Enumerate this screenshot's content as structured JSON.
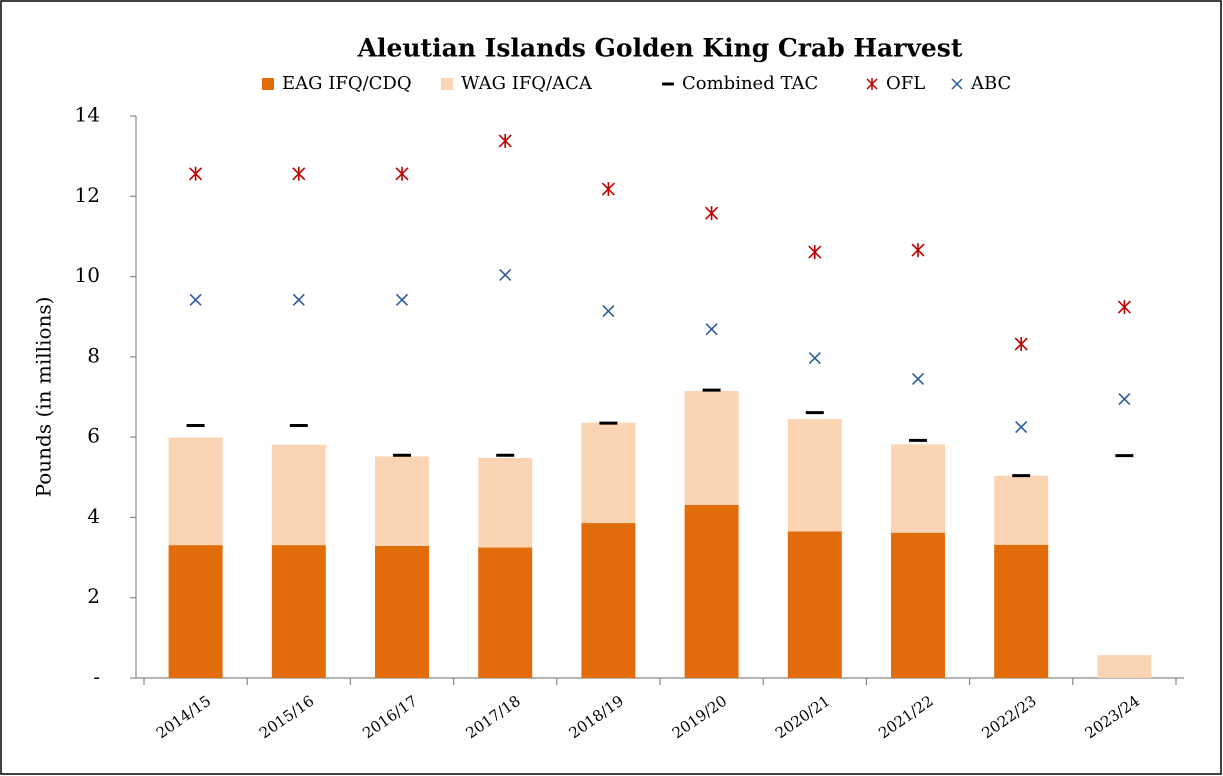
{
  "chart_data": {
    "type": "bar",
    "title": "Aleutian Islands Golden King Crab Harvest",
    "y_label": "Pounds (in millions)",
    "categories": [
      "2014/15",
      "2015/16",
      "2016/17",
      "2017/18",
      "2018/19",
      "2019/20",
      "2020/21",
      "2021/22",
      "2022/23",
      "2023/24"
    ],
    "series": [
      {
        "name": "EAG IFQ/CDQ",
        "color": "#e36c0a",
        "type": "bar",
        "stacked": true,
        "values": [
          3.31,
          3.31,
          3.29,
          3.25,
          3.86,
          4.31,
          3.65,
          3.62,
          3.32,
          0
        ]
      },
      {
        "name": "WAG IFQ/ACA",
        "color": "#fbd4b4",
        "type": "bar",
        "stacked": true,
        "values": [
          2.68,
          2.5,
          2.23,
          2.23,
          2.5,
          2.84,
          2.8,
          2.2,
          1.72,
          0.57
        ]
      },
      {
        "name": "Combined TAC",
        "color": "#000000",
        "type": "marker",
        "marker": "dash",
        "values": [
          6.29,
          6.29,
          5.55,
          5.55,
          6.35,
          7.17,
          6.61,
          5.92,
          5.04,
          5.54
        ]
      },
      {
        "name": "OFL",
        "color": "#c00000",
        "type": "marker",
        "marker": "asterisk",
        "values": [
          12.56,
          12.56,
          12.56,
          13.38,
          12.18,
          11.58,
          10.61,
          10.66,
          8.32,
          9.24
        ]
      },
      {
        "name": "ABC",
        "color": "#2e5c9a",
        "type": "marker",
        "marker": "x",
        "values": [
          9.42,
          9.42,
          9.42,
          10.04,
          9.14,
          8.69,
          7.97,
          7.45,
          6.25,
          6.95
        ]
      }
    ],
    "ylim": [
      0,
      14
    ],
    "yticks": [
      {
        "value": 0,
        "label": "-"
      },
      2,
      4,
      6,
      8,
      10,
      12,
      14
    ]
  }
}
